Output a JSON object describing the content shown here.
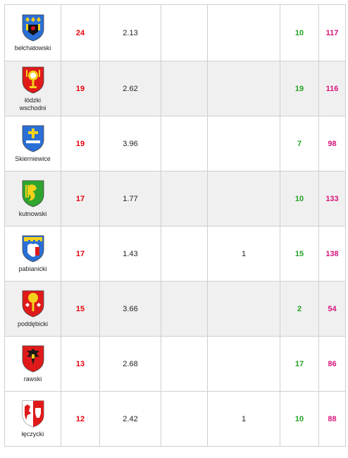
{
  "rows": [
    {
      "name": "bełchatowski",
      "a": "24",
      "b": "2.13",
      "c": "",
      "d": "",
      "e": "10",
      "f": "117",
      "crest": "coat-of-arms-blue-lilies-eagle"
    },
    {
      "name": "łódzki wschodni",
      "a": "19",
      "b": "2.62",
      "c": "",
      "d": "",
      "e": "19",
      "f": "116",
      "crest": "coat-of-arms-red-monstrance"
    },
    {
      "name": "Skierniewice",
      "a": "19",
      "b": "3.96",
      "c": "",
      "d": "",
      "e": "7",
      "f": "98",
      "crest": "coat-of-arms-blue-cross"
    },
    {
      "name": "kutnowski",
      "a": "17",
      "b": "1.77",
      "c": "",
      "d": "",
      "e": "10",
      "f": "133",
      "crest": "coat-of-arms-green-griffin"
    },
    {
      "name": "pabianicki",
      "a": "17",
      "b": "1.43",
      "c": "",
      "d": "1",
      "e": "15",
      "f": "138",
      "crest": "coat-of-arms-blue-castle-bison"
    },
    {
      "name": "poddębicki",
      "a": "15",
      "b": "3.66",
      "c": "",
      "d": "",
      "e": "2",
      "f": "54",
      "crest": "coat-of-arms-red-tree"
    },
    {
      "name": "rawski",
      "a": "13",
      "b": "2.68",
      "c": "",
      "d": "",
      "e": "17",
      "f": "86",
      "crest": "coat-of-arms-red-eagle"
    },
    {
      "name": "łęczycki",
      "a": "12",
      "b": "2.42",
      "c": "",
      "d": "1",
      "e": "10",
      "f": "88",
      "crest": "coat-of-arms-split-eagle-bear"
    }
  ],
  "colors": {
    "red": "#e8000b",
    "green": "#22a322",
    "pink": "#d8157d"
  }
}
